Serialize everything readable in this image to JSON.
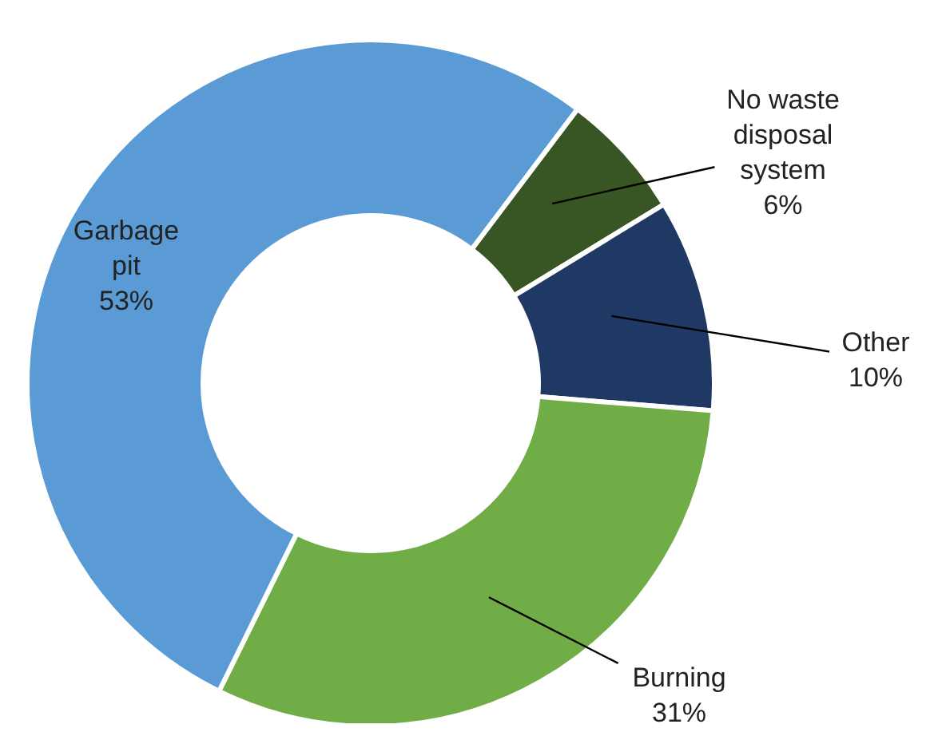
{
  "chart_data": {
    "type": "donut",
    "categories": [
      "No waste disposal system",
      "Other",
      "Burning",
      "Garbage pit"
    ],
    "values": [
      6,
      10,
      31,
      53
    ],
    "value_labels": [
      "6%",
      "10%",
      "31%",
      "53%"
    ],
    "colors": [
      "#375623",
      "#1f3864",
      "#70ad47",
      "#5b9bd5"
    ],
    "legend": false
  }
}
